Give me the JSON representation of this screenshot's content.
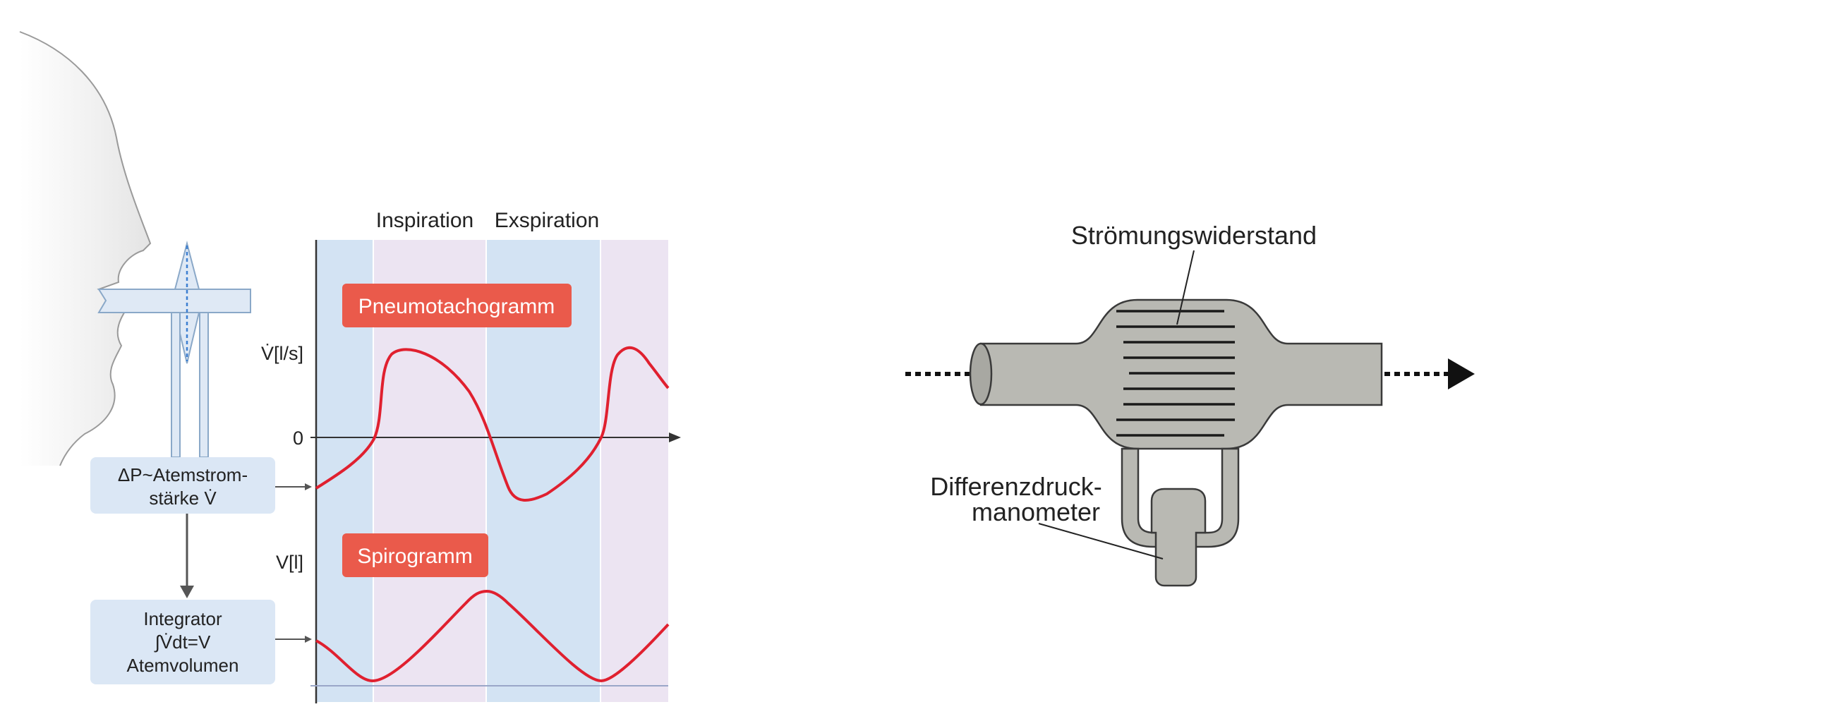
{
  "left_figure": {
    "phase_labels": {
      "inspiration": "Inspiration",
      "exspiration": "Exspiration"
    },
    "pneumo_tag": "Pneumotachogramm",
    "spiro_tag": "Spirogramm",
    "axis_flow_label": "V̇[l/s]",
    "axis_zero_label": "0",
    "axis_volume_label": "V[l]",
    "box_pressure": {
      "line1": "ΔP~Atemstrom-",
      "line2": "stärke V̇"
    },
    "box_integrator": {
      "line1": "Integrator",
      "line2": "∫V̇dt=V",
      "line3": "Atemvolumen"
    },
    "colors": {
      "inspiration_band": "#d3e3f3",
      "exspiration_band": "#ece4f2",
      "curve": "#e0202f",
      "tag": "#ea5a4b",
      "box": "#dbe7f5",
      "face": "#f1f1f1"
    }
  },
  "right_figure": {
    "label_resistance": "Strömungswiderstand",
    "label_manometer": {
      "line1": "Differenzdruck-",
      "line2": "manometer"
    },
    "colors": {
      "body": "#b9b9b3",
      "outline": "#3a3a3a"
    }
  }
}
